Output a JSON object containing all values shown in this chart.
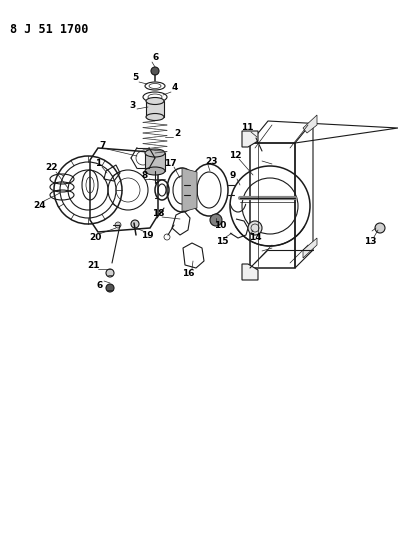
{
  "title": "8 J 51 1700",
  "bg_color": "#ffffff",
  "line_color": "#1a1a1a",
  "label_color": "#000000",
  "title_fontsize": 8.5,
  "label_fontsize": 6.5,
  "figsize": [
    3.98,
    5.33
  ],
  "dpi": 100,
  "layout": {
    "xlim": [
      0,
      398
    ],
    "ylim": [
      0,
      533
    ]
  }
}
